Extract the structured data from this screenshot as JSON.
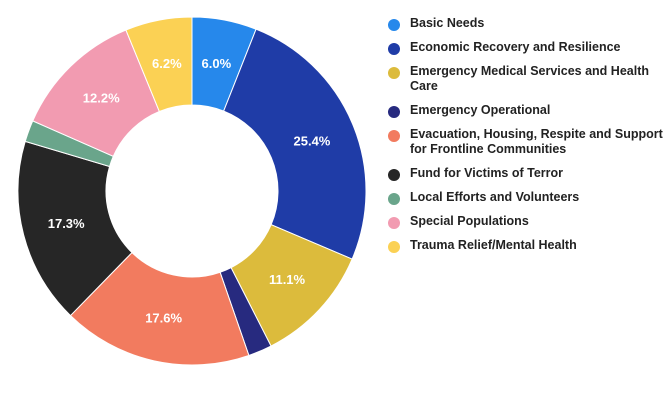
{
  "chart_data": {
    "type": "pie",
    "style": "donut",
    "title": "",
    "legend_position": "right",
    "slices": [
      {
        "label": "Basic Needs",
        "value": 6.0,
        "display": "6.0%",
        "color": "#2688eb"
      },
      {
        "label": "Economic Recovery and Resilience",
        "value": 25.4,
        "display": "25.4%",
        "color": "#1f3ca7"
      },
      {
        "label": "Emergency Medical Services and Health Care",
        "value": 11.1,
        "display": "11.1%",
        "color": "#dcbb3c"
      },
      {
        "label": "Emergency Operational",
        "value": 2.2,
        "display": "",
        "color": "#272a7f"
      },
      {
        "label": "Evacuation, Housing, Respite and Support for Frontline Communities",
        "value": 17.6,
        "display": "17.6%",
        "color": "#f27b5f"
      },
      {
        "label": "Fund for Victims of Terror",
        "value": 17.3,
        "display": "17.3%",
        "color": "#262626"
      },
      {
        "label": "Local Efforts and Volunteers",
        "value": 2.0,
        "display": "",
        "color": "#6aa58b"
      },
      {
        "label": "Special Populations",
        "value": 12.2,
        "display": "12.2%",
        "color": "#f29bb1"
      },
      {
        "label": "Trauma Relief/Mental Health",
        "value": 6.2,
        "display": "6.2%",
        "color": "#fbd154"
      }
    ]
  }
}
